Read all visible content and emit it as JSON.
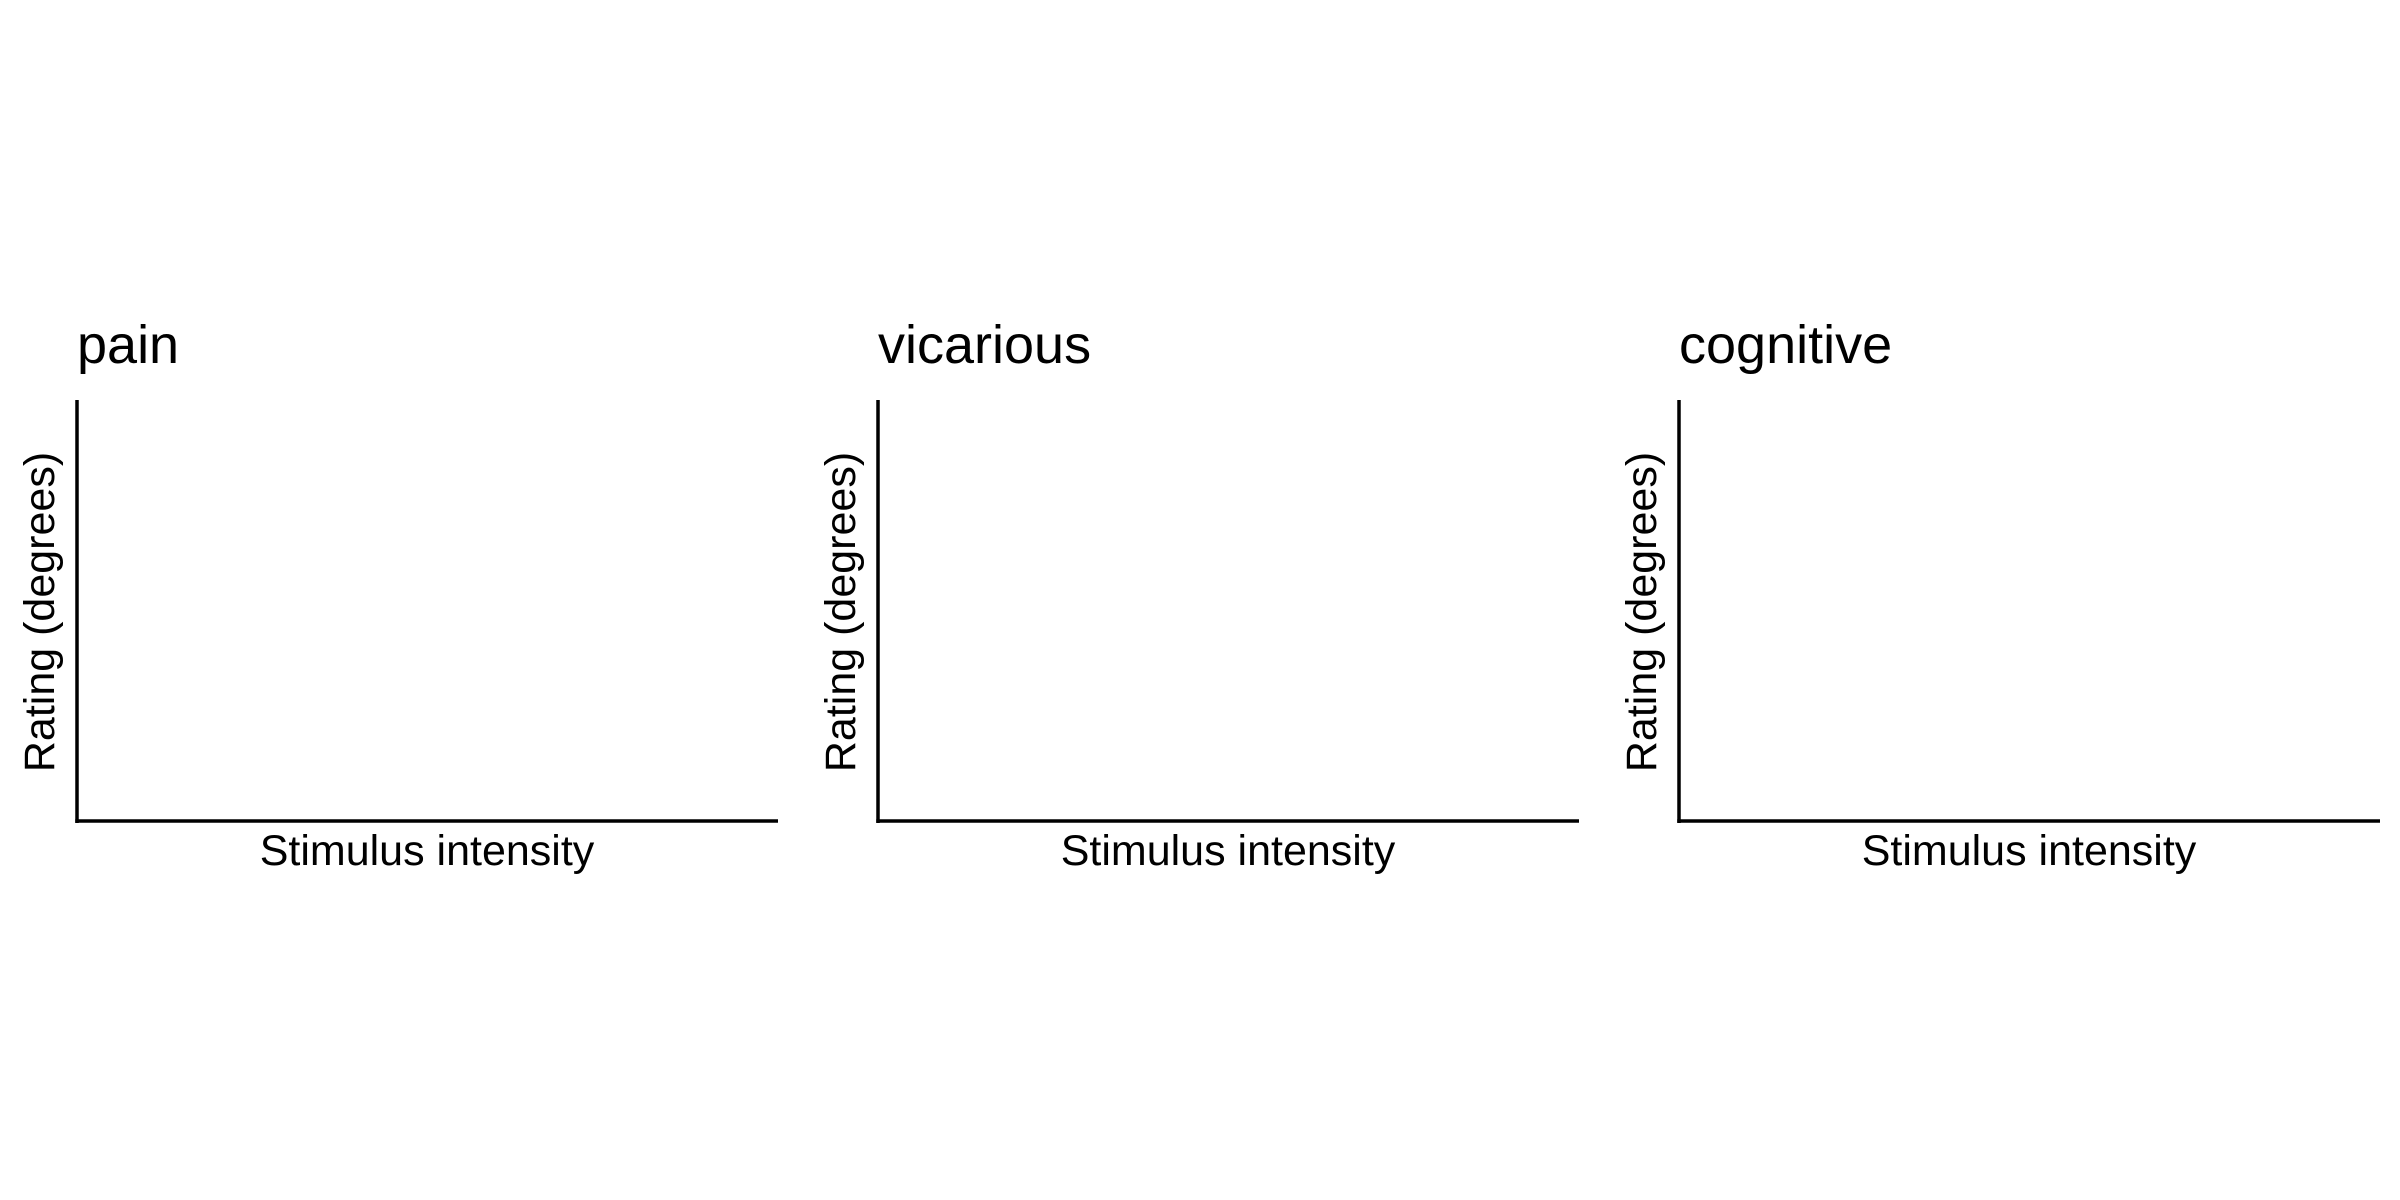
{
  "chart_data": [
    {
      "type": "line",
      "title": "pain",
      "xlabel": "Stimulus intensity",
      "ylabel": "Rating (degrees)",
      "series": [],
      "grid": false
    },
    {
      "type": "line",
      "title": "vicarious",
      "xlabel": "Stimulus intensity",
      "ylabel": "Rating (degrees)",
      "series": [],
      "grid": false
    },
    {
      "type": "line",
      "title": "cognitive",
      "xlabel": "Stimulus intensity",
      "ylabel": "Rating (degrees)",
      "series": [],
      "grid": false
    }
  ],
  "colors": {
    "axis": "#000000",
    "background": "#ffffff"
  }
}
